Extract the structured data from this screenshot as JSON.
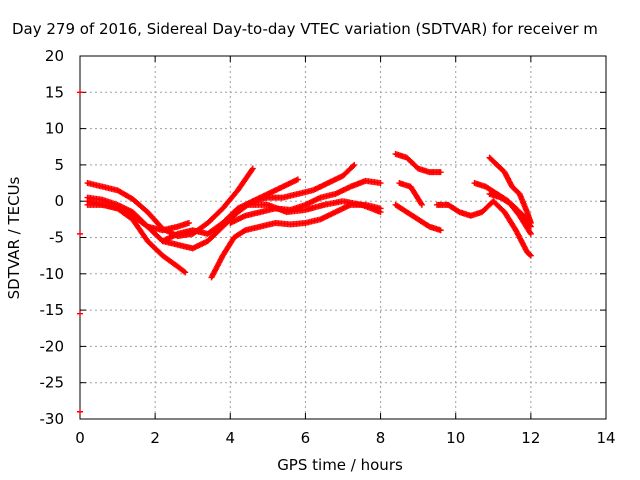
{
  "chart_data": {
    "type": "scatter",
    "title": "Day 279 of 2016, Sidereal Day-to-day VTEC variation (SDTVAR) for receiver m",
    "xlabel": "GPS time / hours",
    "ylabel": "SDTVAR / TECUs",
    "xlim": [
      0,
      14
    ],
    "ylim": [
      -30,
      20
    ],
    "x_ticks": [
      "0",
      "2",
      "4",
      "6",
      "8",
      "10",
      "12",
      "14"
    ],
    "y_ticks": [
      "20",
      "15",
      "10",
      "5",
      "0",
      "-5",
      "-10",
      "-15",
      "-20",
      "-25",
      "-30"
    ],
    "grid": true,
    "marker": "+",
    "color": "#ff0000",
    "series": [
      {
        "x": [
          0.2,
          0.6,
          1.0,
          1.4,
          1.8,
          2.2,
          2.6,
          3.0,
          3.4,
          3.8,
          4.2,
          4.6
        ],
        "y": [
          2.5,
          2.0,
          1.5,
          0.3,
          -1.5,
          -3.8,
          -4.8,
          -4.5,
          -3.0,
          -1.0,
          1.5,
          4.5
        ]
      },
      {
        "x": [
          0.2,
          0.6,
          1.0,
          1.4,
          1.8,
          2.2,
          2.6,
          3.0,
          3.4,
          3.8,
          4.2,
          4.6,
          5.0,
          5.4,
          5.8
        ],
        "y": [
          0.5,
          0.2,
          -0.5,
          -1.5,
          -3.5,
          -5.5,
          -6.0,
          -6.5,
          -5.5,
          -3.5,
          -1.5,
          0.0,
          1.0,
          2.0,
          3.0
        ]
      },
      {
        "x": [
          0.2,
          0.6,
          1.0,
          1.4,
          1.8,
          2.2,
          2.6,
          2.8
        ],
        "y": [
          -0.5,
          -0.5,
          -1.0,
          -2.5,
          -5.5,
          -7.5,
          -9.0,
          -9.8
        ]
      },
      {
        "x": [
          0.2,
          0.6,
          1.0,
          1.4,
          1.8,
          2.2,
          2.6,
          2.9
        ],
        "y": [
          0.0,
          -0.5,
          -1.0,
          -2.0,
          -3.5,
          -4.0,
          -3.5,
          -3.0
        ]
      },
      {
        "x": [
          3.5,
          3.8,
          4.1,
          4.4,
          4.8,
          5.2,
          5.6,
          6.0,
          6.4,
          6.8,
          7.2,
          7.6,
          8.0
        ],
        "y": [
          -10.5,
          -7.5,
          -5.0,
          -4.0,
          -3.5,
          -3.0,
          -3.2,
          -3.0,
          -2.5,
          -1.5,
          -0.5,
          -0.5,
          -1.0
        ]
      },
      {
        "x": [
          2.2,
          2.6,
          3.0,
          3.4,
          3.8,
          4.2,
          4.6,
          5.0,
          5.4,
          5.8,
          6.2,
          6.6,
          7.0,
          7.3
        ],
        "y": [
          -5.5,
          -4.5,
          -4.0,
          -4.5,
          -3.0,
          -1.0,
          0.0,
          0.5,
          0.5,
          1.0,
          1.5,
          2.5,
          3.5,
          5.0
        ]
      },
      {
        "x": [
          4.0,
          4.4,
          4.8,
          5.2,
          5.6,
          6.0,
          6.4,
          6.8,
          7.2,
          7.6,
          8.0
        ],
        "y": [
          -3.0,
          -2.0,
          -1.5,
          -1.0,
          -1.2,
          -0.5,
          0.5,
          1.0,
          2.0,
          2.8,
          2.5
        ]
      },
      {
        "x": [
          4.5,
          5.0,
          5.5,
          6.0,
          6.5,
          7.0,
          7.5,
          8.0
        ],
        "y": [
          -0.5,
          -0.5,
          -1.5,
          -1.2,
          -0.5,
          0.0,
          -0.5,
          -1.5
        ]
      },
      {
        "x": [
          8.4,
          8.7,
          9.0,
          9.3,
          9.6
        ],
        "y": [
          6.5,
          6.0,
          4.5,
          4.0,
          4.0
        ]
      },
      {
        "x": [
          8.4,
          8.7,
          9.0,
          9.3,
          9.6
        ],
        "y": [
          -0.5,
          -1.5,
          -2.5,
          -3.5,
          -4.0
        ]
      },
      {
        "x": [
          8.5,
          8.8,
          9.1
        ],
        "y": [
          2.5,
          2.0,
          -0.5
        ]
      },
      {
        "x": [
          9.5,
          9.8,
          10.1,
          10.4,
          10.7,
          11.0,
          11.3,
          11.6,
          11.9,
          12.0
        ],
        "y": [
          -0.5,
          -0.5,
          -1.5,
          -2.0,
          -1.5,
          0.0,
          -1.5,
          -4.0,
          -7.0,
          -7.5
        ]
      },
      {
        "x": [
          10.5,
          10.8,
          11.1,
          11.4,
          11.7,
          12.0
        ],
        "y": [
          2.5,
          2.0,
          1.0,
          0.0,
          -2.0,
          -4.5
        ]
      },
      {
        "x": [
          10.9,
          11.1,
          11.3,
          11.5,
          11.7,
          11.9,
          12.0
        ],
        "y": [
          6.0,
          5.0,
          4.0,
          2.0,
          1.0,
          -1.5,
          -3.0
        ]
      },
      {
        "x": [
          10.9,
          11.2,
          11.5,
          11.8,
          12.0
        ],
        "y": [
          1.0,
          0.5,
          -0.5,
          -2.0,
          -3.5
        ]
      },
      {
        "x": [
          0.0,
          0.0,
          0.0,
          0.0
        ],
        "y": [
          15.0,
          -4.5,
          -15.5,
          -29.0
        ]
      }
    ]
  }
}
